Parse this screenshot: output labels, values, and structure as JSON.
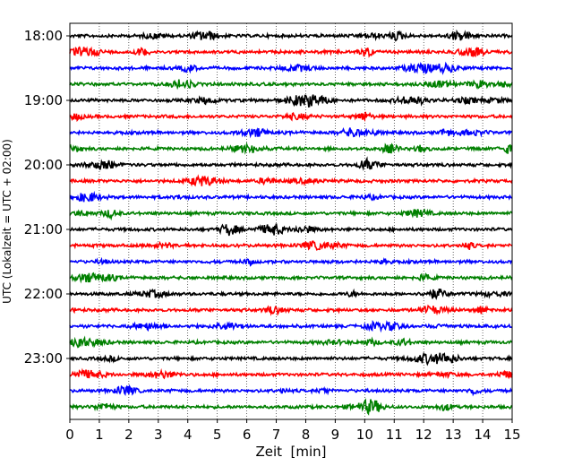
{
  "chart_data": {
    "type": "line",
    "title": "",
    "xlabel": "Zeit  [min]",
    "ylabel": "UTC (Lokalzeit = UTC + 02:00)",
    "xlim": [
      0,
      15
    ],
    "x_ticks": [
      0,
      1,
      2,
      3,
      4,
      5,
      6,
      7,
      8,
      9,
      10,
      11,
      12,
      13,
      14,
      15
    ],
    "y_tick_labels": [
      "18:00",
      "19:00",
      "20:00",
      "21:00",
      "22:00",
      "23:00"
    ],
    "row_interval_minutes": 15,
    "start_time": "18:00",
    "rows": 24,
    "color_cycle": [
      "#000000",
      "#ff0000",
      "#0000ff",
      "#008000"
    ],
    "vertical_grid": "dotted",
    "legend": "none"
  }
}
